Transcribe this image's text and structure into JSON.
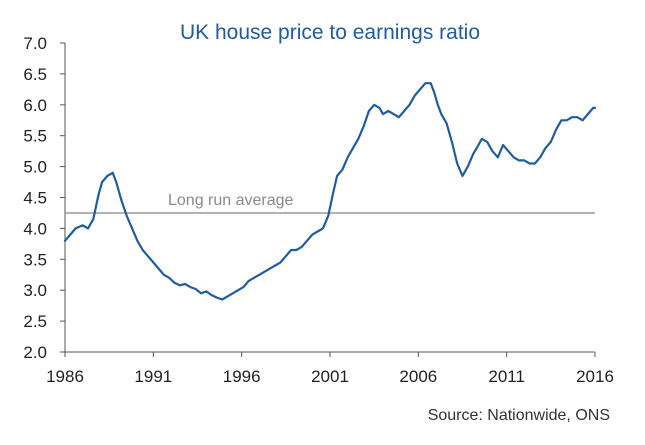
{
  "chart_data": {
    "type": "line",
    "title": "UK house price to earnings ratio",
    "source": "Source: Nationwide, ONS",
    "xlabel": "",
    "ylabel": "",
    "xlim": [
      1986,
      2016
    ],
    "ylim": [
      2.0,
      7.0
    ],
    "x_ticks": [
      "1986",
      "1991",
      "1996",
      "2001",
      "2006",
      "2011",
      "2016"
    ],
    "y_ticks": [
      "7.0",
      "6.5",
      "6.0",
      "5.5",
      "5.0",
      "4.5",
      "4.0",
      "3.5",
      "3.0",
      "2.5",
      "2.0"
    ],
    "grid": false,
    "reference_line": {
      "label": "Long run average",
      "value": 4.25,
      "color": "#9a9a9a"
    },
    "series": [
      {
        "color": "#1f5ca0",
        "x": [
          1986.0,
          1986.3,
          1986.6,
          1987.0,
          1987.3,
          1987.6,
          1987.9,
          1988.1,
          1988.4,
          1988.7,
          1988.9,
          1989.2,
          1989.5,
          1989.8,
          1990.1,
          1990.4,
          1990.7,
          1991.0,
          1991.3,
          1991.6,
          1991.9,
          1992.2,
          1992.5,
          1992.8,
          1993.1,
          1993.4,
          1993.7,
          1994.0,
          1994.3,
          1994.6,
          1994.9,
          1995.2,
          1995.5,
          1995.8,
          1996.1,
          1996.4,
          1996.7,
          1997.0,
          1997.3,
          1997.6,
          1997.9,
          1998.2,
          1998.5,
          1998.8,
          1999.1,
          1999.4,
          1999.7,
          2000.0,
          2000.3,
          2000.6,
          2000.9,
          2001.2,
          2001.4,
          2001.7,
          2002.0,
          2002.3,
          2002.6,
          2002.9,
          2003.2,
          2003.5,
          2003.8,
          2004.0,
          2004.3,
          2004.6,
          2004.9,
          2005.2,
          2005.5,
          2005.8,
          2006.1,
          2006.4,
          2006.7,
          2006.9,
          2007.1,
          2007.3,
          2007.6,
          2007.9,
          2008.2,
          2008.5,
          2008.8,
          2009.1,
          2009.4,
          2009.6,
          2009.9,
          2010.2,
          2010.5,
          2010.8,
          2011.1,
          2011.4,
          2011.7,
          2012.0,
          2012.3,
          2012.6,
          2012.9,
          2013.2,
          2013.5,
          2013.8,
          2014.1,
          2014.4,
          2014.7,
          2015.0,
          2015.3,
          2015.6,
          2015.9,
          2016.0
        ],
        "y": [
          3.8,
          3.9,
          4.0,
          4.05,
          4.0,
          4.15,
          4.55,
          4.75,
          4.85,
          4.9,
          4.75,
          4.45,
          4.2,
          4.0,
          3.8,
          3.65,
          3.55,
          3.45,
          3.35,
          3.25,
          3.2,
          3.12,
          3.08,
          3.1,
          3.05,
          3.02,
          2.95,
          2.98,
          2.92,
          2.88,
          2.85,
          2.9,
          2.95,
          3.0,
          3.05,
          3.15,
          3.2,
          3.25,
          3.3,
          3.35,
          3.4,
          3.45,
          3.55,
          3.65,
          3.65,
          3.7,
          3.8,
          3.9,
          3.95,
          4.0,
          4.2,
          4.6,
          4.85,
          4.95,
          5.15,
          5.3,
          5.45,
          5.65,
          5.9,
          6.0,
          5.95,
          5.85,
          5.9,
          5.85,
          5.8,
          5.9,
          6.0,
          6.15,
          6.25,
          6.35,
          6.35,
          6.2,
          6.0,
          5.85,
          5.7,
          5.4,
          5.05,
          4.85,
          5.0,
          5.2,
          5.35,
          5.45,
          5.4,
          5.25,
          5.15,
          5.35,
          5.25,
          5.15,
          5.1,
          5.1,
          5.05,
          5.05,
          5.15,
          5.3,
          5.4,
          5.6,
          5.75,
          5.75,
          5.8,
          5.8,
          5.75,
          5.85,
          5.95,
          5.95
        ]
      }
    ]
  }
}
